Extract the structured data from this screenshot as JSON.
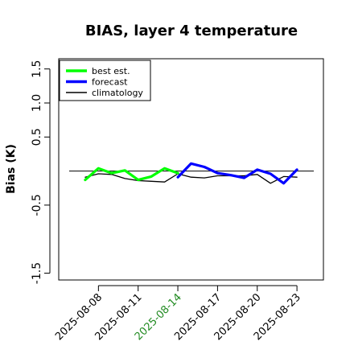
{
  "chart_data": {
    "type": "line",
    "title": "BIAS, layer 4 temperature",
    "xlabel": "",
    "ylabel": "Bias (K)",
    "ylim": [
      -1.6,
      1.65
    ],
    "yticks": [
      -1.5,
      -0.5,
      0.5,
      1.0,
      1.5
    ],
    "ytick_labels": [
      "-1.5",
      "-0.5",
      "0.5",
      "1.0",
      "1.5"
    ],
    "xticks": [
      "2025-08-08",
      "2025-08-11",
      "2025-08-14",
      "2025-08-17",
      "2025-08-20",
      "2025-08-23"
    ],
    "highlighted_xtick": "2025-08-14",
    "highlight_color": "#228B22",
    "xlim": [
      "2025-08-05",
      "2025-08-25"
    ],
    "reference_line": 0,
    "legend_position": "top-left",
    "series": [
      {
        "name": "best est.",
        "color": "#00ff00",
        "x": [
          "2025-08-07",
          "2025-08-08",
          "2025-08-09",
          "2025-08-10",
          "2025-08-11",
          "2025-08-12",
          "2025-08-13",
          "2025-08-14"
        ],
        "values": [
          -0.13,
          0.04,
          -0.03,
          0.01,
          -0.13,
          -0.08,
          0.04,
          -0.03
        ]
      },
      {
        "name": "forecast",
        "color": "#0000ff",
        "x": [
          "2025-08-14",
          "2025-08-15",
          "2025-08-16",
          "2025-08-17",
          "2025-08-18",
          "2025-08-19",
          "2025-08-20",
          "2025-08-21",
          "2025-08-22",
          "2025-08-23"
        ],
        "values": [
          -0.09,
          0.11,
          0.06,
          -0.03,
          -0.06,
          -0.1,
          0.02,
          -0.04,
          -0.18,
          0.02
        ]
      },
      {
        "name": "climatology",
        "color": "#000000",
        "x": [
          "2025-08-07",
          "2025-08-08",
          "2025-08-09",
          "2025-08-10",
          "2025-08-11",
          "2025-08-12",
          "2025-08-13",
          "2025-08-14",
          "2025-08-15",
          "2025-08-16",
          "2025-08-17",
          "2025-08-18",
          "2025-08-19",
          "2025-08-20",
          "2025-08-21",
          "2025-08-22",
          "2025-08-23"
        ],
        "values": [
          -0.09,
          -0.04,
          -0.05,
          -0.11,
          -0.14,
          -0.15,
          -0.16,
          -0.04,
          -0.09,
          -0.1,
          -0.07,
          -0.07,
          -0.07,
          -0.05,
          -0.18,
          -0.08,
          -0.09
        ]
      }
    ]
  }
}
